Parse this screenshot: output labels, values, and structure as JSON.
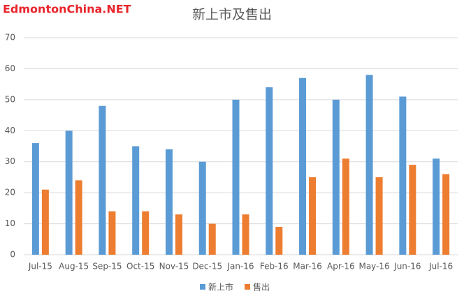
{
  "chart_data": {
    "type": "bar",
    "title": "新上市及售出",
    "watermark": "EdmontonChina.NET",
    "categories": [
      "Jul-15",
      "Aug-15",
      "Sep-15",
      "Oct-15",
      "Nov-15",
      "Dec-15",
      "Jan-16",
      "Feb-16",
      "Mar-16",
      "Apr-16",
      "May-16",
      "Jun-16",
      "Jul-16"
    ],
    "series": [
      {
        "name": "新上市",
        "color": "#5b9bd5",
        "values": [
          36,
          40,
          48,
          35,
          34,
          30,
          50,
          54,
          57,
          50,
          58,
          51,
          31
        ]
      },
      {
        "name": "售出",
        "color": "#ed7d31",
        "values": [
          21,
          24,
          14,
          14,
          13,
          10,
          13,
          9,
          25,
          31,
          25,
          29,
          26
        ]
      }
    ],
    "ylim": [
      0,
      70
    ],
    "yticks": [
      0,
      10,
      20,
      30,
      40,
      50,
      60,
      70
    ],
    "grid": true,
    "legend": "bottom"
  }
}
